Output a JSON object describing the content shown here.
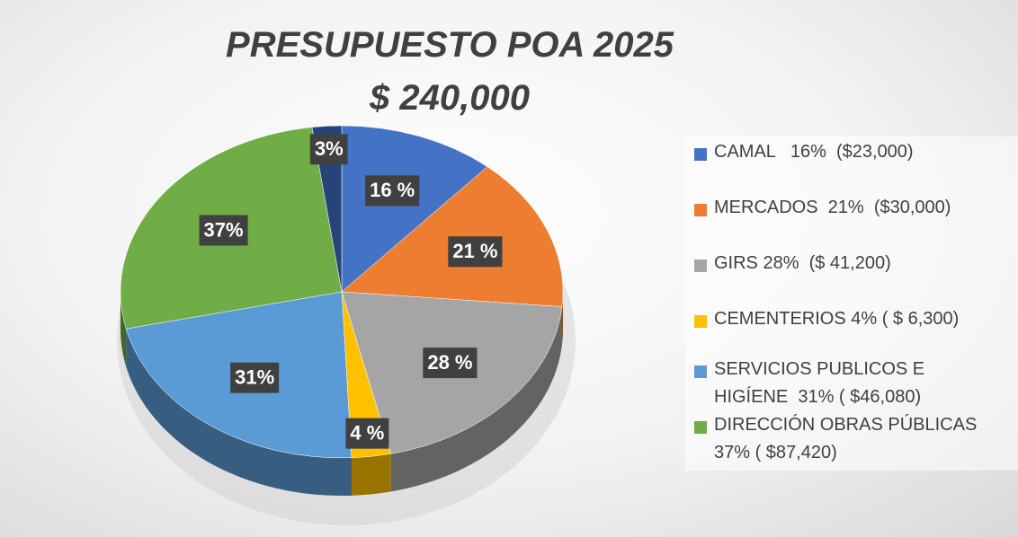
{
  "chart_data": {
    "type": "pie",
    "title": "PRESUPUESTO POA 2025",
    "subtitle": "$ 240,000",
    "categories": [
      "CAMAL   16%  ($23,000)",
      "MERCADOS  21%  ($30,000)",
      "GIRS 28%  ($ 41,200)",
      "CEMENTERIOS 4% ( $ 6,300)",
      "SERVICIOS PUBLICOS E HIGÍENE  31% ( $46,080)",
      "DIRECCIÓN OBRAS PÚBLICAS 37% ( $87,420)",
      null
    ],
    "values": [
      16,
      21,
      28,
      4,
      31,
      37,
      3
    ],
    "value_labels": [
      "16 %",
      "21 %",
      "28 %",
      "4 %",
      "31%",
      "37%",
      "3%"
    ],
    "colors": [
      "#4472c4",
      "#ed7d31",
      "#a5a5a5",
      "#ffc000",
      "#5b9bd5",
      "#70ad47",
      "#264478"
    ],
    "legend": "right"
  }
}
